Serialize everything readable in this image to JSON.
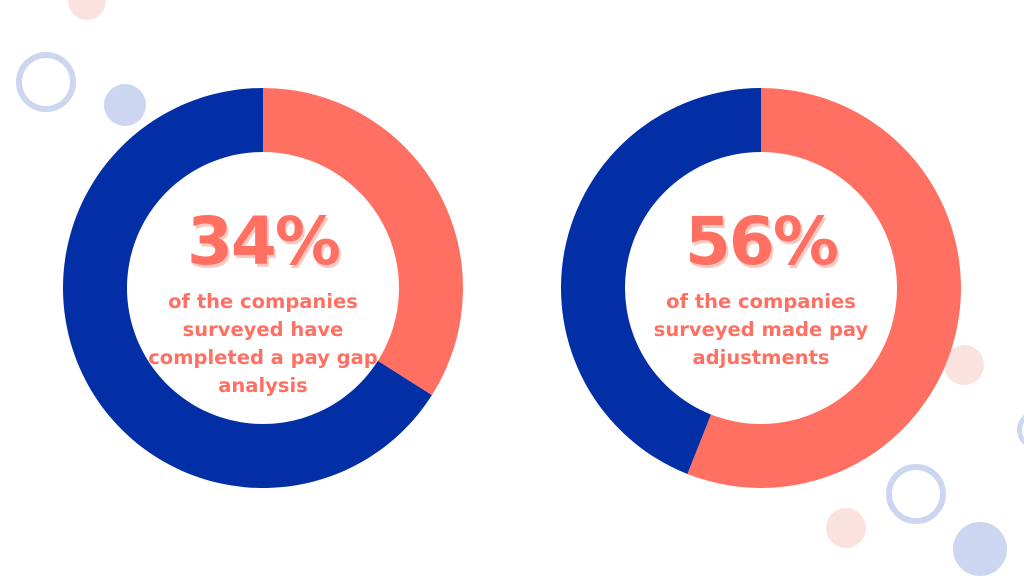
{
  "colors": {
    "navy": "#022ea6",
    "coral": "#ff7062",
    "light_pink": "#fbe2df",
    "light_lavender": "#cdd6f0"
  },
  "chart_data": [
    {
      "type": "pie",
      "variant": "donut",
      "categories": [
        "",
        ""
      ],
      "values": [
        34,
        66
      ],
      "colors": [
        "#ff7062",
        "#022ea6"
      ],
      "center_value": "34%",
      "center_caption": "of the companies surveyed have completed a pay gap analysis",
      "caption_lines": [
        "of the companies",
        "surveyed have",
        "completed a pay gap",
        "analysis"
      ]
    },
    {
      "type": "pie",
      "variant": "donut",
      "categories": [
        "",
        ""
      ],
      "values": [
        56,
        44
      ],
      "colors": [
        "#ff7062",
        "#022ea6"
      ],
      "center_value": "56%",
      "center_caption": "of the companies surveyed made pay adjustments",
      "caption_lines": [
        "of the companies",
        "surveyed made pay",
        "adjustments"
      ]
    }
  ]
}
